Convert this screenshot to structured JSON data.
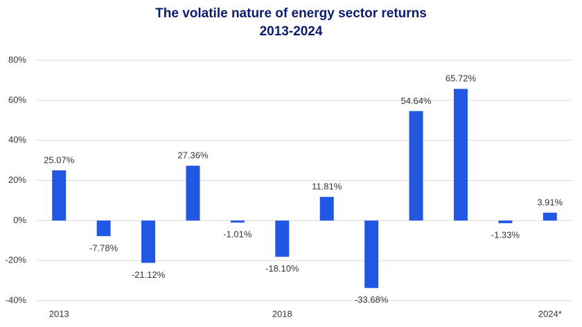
{
  "chart_data": {
    "type": "bar",
    "title": "The volatile nature of energy sector returns",
    "subtitle": "2013-2024",
    "categories": [
      "2013",
      null,
      null,
      null,
      null,
      "2018",
      null,
      null,
      null,
      null,
      null,
      "2024*"
    ],
    "values": [
      25.07,
      -7.78,
      -21.12,
      27.36,
      -1.01,
      -18.1,
      11.81,
      -33.68,
      54.64,
      65.72,
      -1.33,
      3.91
    ],
    "value_labels": [
      "25.07%",
      "-7.78%",
      "-21.12%",
      "27.36%",
      "-1.01%",
      "-18.10%",
      "11.81%",
      "-33.68%",
      "54.64%",
      "65.72%",
      "-1.33%",
      "3.91%"
    ],
    "color": "#2257e3",
    "ylim": [
      -40,
      80
    ],
    "yticks": [
      {
        "value": -40,
        "label": "-40%"
      },
      {
        "value": -20,
        "label": "-20%"
      },
      {
        "value": 0,
        "label": "0%"
      },
      {
        "value": 20,
        "label": "20%"
      },
      {
        "value": 40,
        "label": "40%"
      },
      {
        "value": 60,
        "label": "60%"
      },
      {
        "value": 80,
        "label": "80%"
      }
    ],
    "grid": true
  }
}
